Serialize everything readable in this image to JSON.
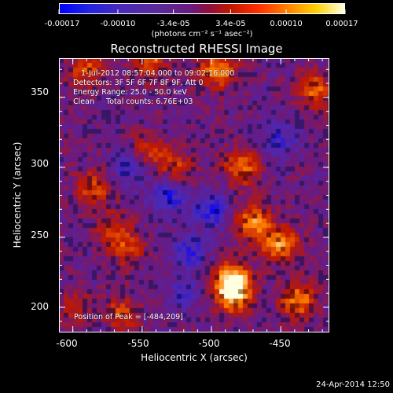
{
  "colorbar": {
    "ticks": [
      "-0.00017",
      "-0.00010",
      "-3.4e-05",
      "3.4e-05",
      "0.00010",
      "0.00017"
    ],
    "unit": "(photons cm⁻² s⁻¹ asec⁻²)"
  },
  "plot": {
    "title": "Reconstructed RHESSI Image",
    "info_lines": [
      "1-Jul-2012 08:57:04.000 to 09:02:16.000",
      "Detectors: 3F 5F 6F 7F 8F 9F, Att 0",
      "Energy Range: 25.0 - 50.0 keV",
      "Clean     Total counts: 6.76E+03"
    ],
    "peak_label": "Position of Peak = [-484,209]"
  },
  "axes": {
    "xlabel": "Heliocentric X (arcsec)",
    "ylabel": "Heliocentric Y (arcsec)",
    "xticks": [
      "-600",
      "-550",
      "-500",
      "-450"
    ],
    "yticks": [
      "350",
      "300",
      "250",
      "200"
    ]
  },
  "timestamp": "24-Apr-2014 12:50",
  "chart_data": {
    "type": "heatmap",
    "title": "Reconstructed RHESSI Image",
    "xlabel": "Heliocentric X (arcsec)",
    "ylabel": "Heliocentric Y (arcsec)",
    "xlim": [
      -610,
      -415
    ],
    "ylim": [
      182,
      378
    ],
    "xticks": [
      -600,
      -550,
      -500,
      -450
    ],
    "yticks": [
      200,
      250,
      300,
      350
    ],
    "zlim": [
      -0.00017,
      0.00017
    ],
    "colorbar_ticks": [
      -0.00017,
      -0.0001,
      -3.4e-05,
      3.4e-05,
      0.0001,
      0.00017
    ],
    "peak": [
      -484,
      209
    ],
    "bright_regions": [
      {
        "x": -484,
        "y": 209,
        "value": 0.00017
      },
      {
        "x": -485,
        "y": 220,
        "value": 0.00016
      },
      {
        "x": -450,
        "y": 245,
        "value": 0.00015
      },
      {
        "x": -470,
        "y": 260,
        "value": 0.00014
      },
      {
        "x": -438,
        "y": 205,
        "value": 0.00014
      },
      {
        "x": -495,
        "y": 370,
        "value": 0.00014
      },
      {
        "x": -478,
        "y": 300,
        "value": 0.00012
      },
      {
        "x": -425,
        "y": 355,
        "value": 0.00011
      },
      {
        "x": -590,
        "y": 370,
        "value": 0.0001
      },
      {
        "x": -545,
        "y": 375,
        "value": 0.0001
      },
      {
        "x": -585,
        "y": 285,
        "value": 0.0001
      },
      {
        "x": -570,
        "y": 255,
        "value": 9e-05
      },
      {
        "x": -565,
        "y": 195,
        "value": 9e-05
      },
      {
        "x": -545,
        "y": 312,
        "value": 8e-05
      },
      {
        "x": -525,
        "y": 300,
        "value": 8e-05
      },
      {
        "x": -560,
        "y": 240,
        "value": 7e-05
      },
      {
        "x": -600,
        "y": 200,
        "value": 6e-05
      }
    ],
    "dim_regions": [
      {
        "x": -530,
        "y": 280,
        "value": -0.0001
      },
      {
        "x": -500,
        "y": 270,
        "value": -0.0001
      },
      {
        "x": -515,
        "y": 240,
        "value": -8e-05
      },
      {
        "x": -560,
        "y": 300,
        "value": -7e-05
      },
      {
        "x": -450,
        "y": 320,
        "value": -7e-05
      },
      {
        "x": -520,
        "y": 210,
        "value": -6e-05
      }
    ],
    "colormap": [
      "#0000ff",
      "#4a2ab8",
      "#6a1a80",
      "#c01800",
      "#ff8000",
      "#ffffe0"
    ]
  }
}
